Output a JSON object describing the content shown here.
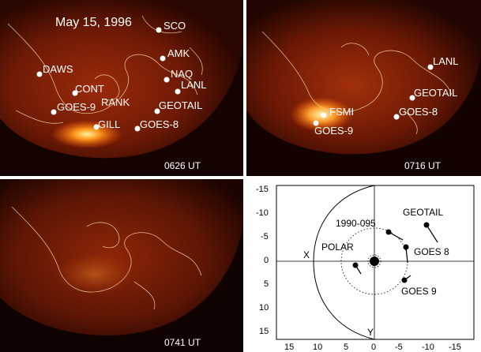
{
  "panels": [
    {
      "date": "May 15, 1996",
      "time": "0626 UT",
      "stations": [
        "SCO",
        "AMK",
        "NAQ",
        "LANL",
        "DAWS",
        "CONT",
        "GOES-9",
        "RANK",
        "GEOTAIL",
        "GILL",
        "GOES-8"
      ]
    },
    {
      "time": "0716 UT",
      "stations": [
        "LANL",
        "GEOTAIL",
        "FSMI",
        "GOES-8",
        "GOES-9"
      ]
    },
    {
      "time": "0741 UT"
    }
  ],
  "orbit_plot": {
    "axis_x_label": "X",
    "axis_y_label": "Y",
    "y_ticks": [
      "-15",
      "-10",
      "-5",
      "0",
      "5",
      "10",
      "15"
    ],
    "x_ticks": [
      "15",
      "10",
      "5",
      "0",
      "-5",
      "-10",
      "-15"
    ],
    "spacecraft": [
      "1990-095",
      "GEOTAIL",
      "POLAR",
      "GOES 8",
      "GOES 9"
    ]
  }
}
